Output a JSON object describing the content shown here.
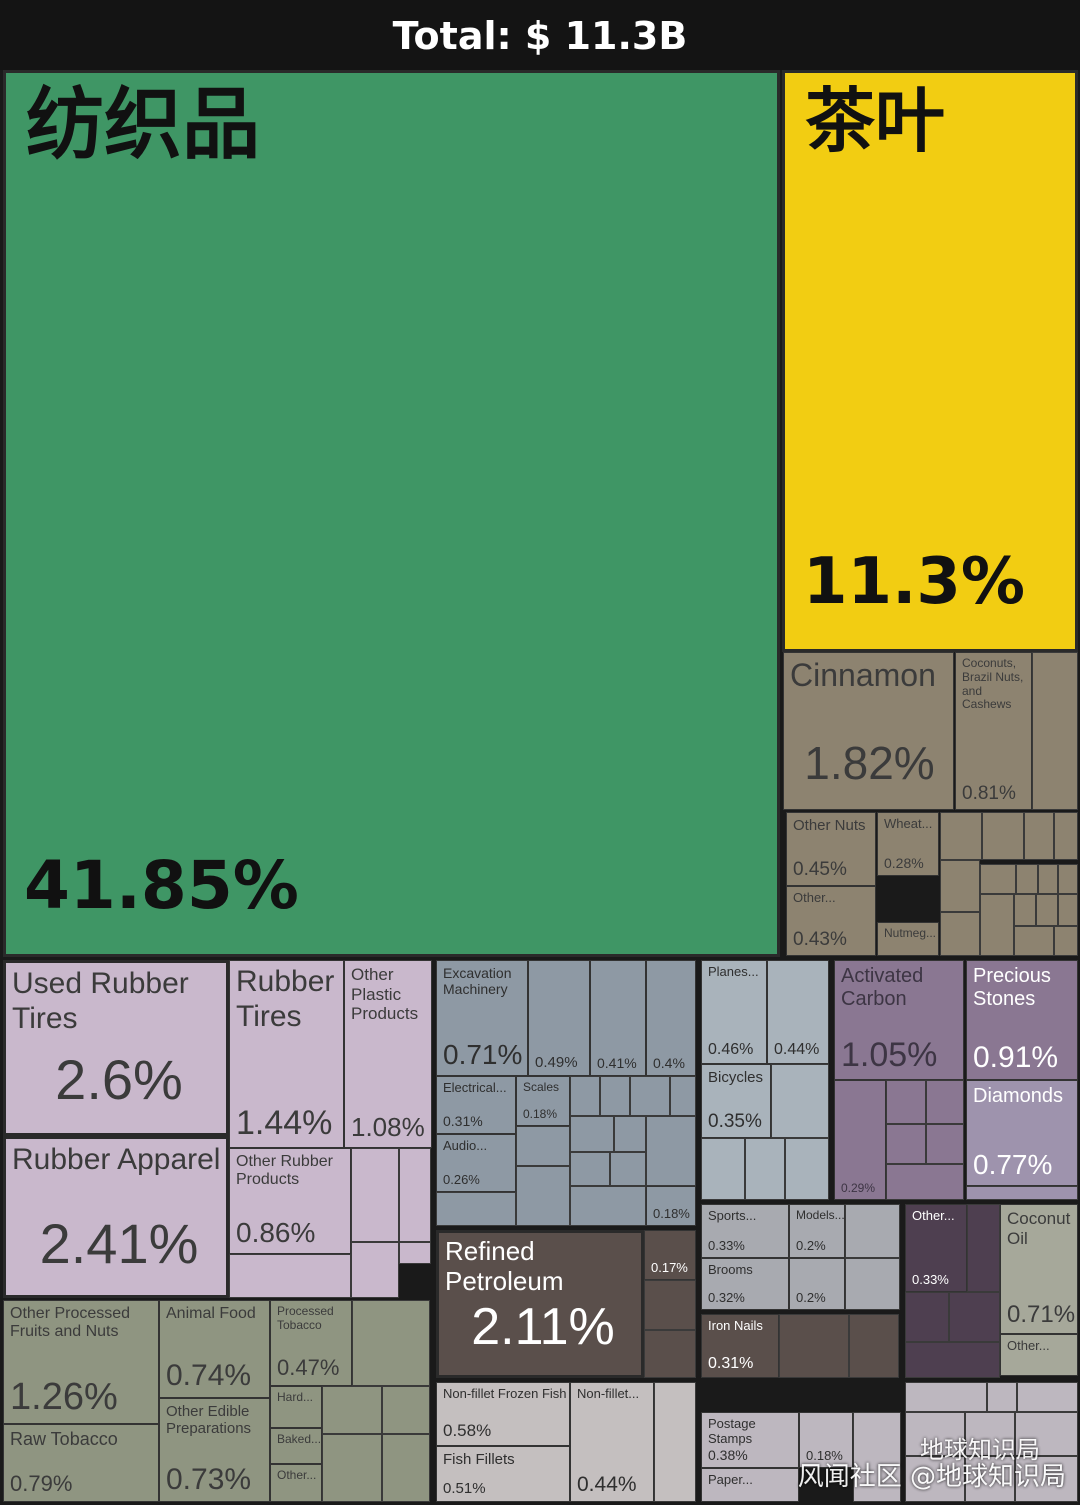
{
  "header": {
    "total_label": "Total: $ 11.3B"
  },
  "watermark": {
    "line1": "地球知识局",
    "line2": "风闻社区 @地球知识局"
  },
  "chart_data": {
    "type": "treemap",
    "title": "Total: $ 11.3B",
    "total": "$ 11.3B",
    "items": [
      {
        "name": "纺织品",
        "value": 41.85,
        "label": "41.85%"
      },
      {
        "name": "茶叶",
        "value": 11.3,
        "label": "11.3%"
      },
      {
        "name": "Cinnamon",
        "value": 1.82,
        "label": "1.82%"
      },
      {
        "name": "Coconuts, Brazil Nuts, and Cashews",
        "value": 0.81,
        "label": "0.81%"
      },
      {
        "name": "Other Nuts",
        "value": 0.45,
        "label": "0.45%"
      },
      {
        "name": "Wheat...",
        "value": 0.28,
        "label": "0.28%"
      },
      {
        "name": "Other...",
        "value": 0.43,
        "label": "0.43%"
      },
      {
        "name": "Nutmeg...",
        "value": null,
        "label": ""
      },
      {
        "name": "Used Rubber Tires",
        "value": 2.6,
        "label": "2.6%"
      },
      {
        "name": "Rubber Tires",
        "value": 1.44,
        "label": "1.44%"
      },
      {
        "name": "Other Plastic Products",
        "value": 1.08,
        "label": "1.08%"
      },
      {
        "name": "Rubber Apparel",
        "value": 2.41,
        "label": "2.41%"
      },
      {
        "name": "Other Rubber Products",
        "value": 0.86,
        "label": "0.86%"
      },
      {
        "name": "Excavation Machinery",
        "value": 0.71,
        "label": "0.71%"
      },
      {
        "name": "",
        "value": 0.49,
        "label": "0.49%"
      },
      {
        "name": "",
        "value": 0.41,
        "label": "0.41%"
      },
      {
        "name": "",
        "value": 0.4,
        "label": "0.4%"
      },
      {
        "name": "Electrical...",
        "value": 0.31,
        "label": "0.31%"
      },
      {
        "name": "Scales",
        "value": 0.18,
        "label": "0.18%"
      },
      {
        "name": "Audio...",
        "value": 0.26,
        "label": "0.26%"
      },
      {
        "name": "",
        "value": 0.18,
        "label": "0.18%"
      },
      {
        "name": "Planes...",
        "value": 0.46,
        "label": "0.46%"
      },
      {
        "name": "",
        "value": 0.44,
        "label": "0.44%"
      },
      {
        "name": "Bicycles",
        "value": 0.35,
        "label": "0.35%"
      },
      {
        "name": "Activated Carbon",
        "value": 1.05,
        "label": "1.05%"
      },
      {
        "name": "",
        "value": 0.29,
        "label": "0.29%"
      },
      {
        "name": "Precious Stones",
        "value": 0.91,
        "label": "0.91%"
      },
      {
        "name": "Diamonds",
        "value": 0.77,
        "label": "0.77%"
      },
      {
        "name": "Refined Petroleum",
        "value": 2.11,
        "label": "2.11%"
      },
      {
        "name": "",
        "value": 0.17,
        "label": "0.17%"
      },
      {
        "name": "Sports...",
        "value": 0.33,
        "label": "0.33%"
      },
      {
        "name": "Models...",
        "value": 0.2,
        "label": "0.2%"
      },
      {
        "name": "Brooms",
        "value": 0.32,
        "label": "0.32%"
      },
      {
        "name": "",
        "value": 0.2,
        "label": "0.2%"
      },
      {
        "name": "Other...",
        "value": 0.33,
        "label": "0.33%"
      },
      {
        "name": "Coconut Oil",
        "value": 0.71,
        "label": "0.71%"
      },
      {
        "name": "Other...",
        "value": null,
        "label": ""
      },
      {
        "name": "Iron Nails",
        "value": 0.31,
        "label": "0.31%"
      },
      {
        "name": "Other Processed Fruits and Nuts",
        "value": 1.26,
        "label": "1.26%"
      },
      {
        "name": "Animal Food",
        "value": 0.74,
        "label": "0.74%"
      },
      {
        "name": "Processed Tobacco",
        "value": 0.47,
        "label": "0.47%"
      },
      {
        "name": "Hard...",
        "value": null,
        "label": ""
      },
      {
        "name": "Raw Tobacco",
        "value": 0.79,
        "label": "0.79%"
      },
      {
        "name": "Other Edible Preparations",
        "value": 0.73,
        "label": "0.73%"
      },
      {
        "name": "Baked...",
        "value": null,
        "label": ""
      },
      {
        "name": "Other...",
        "value": null,
        "label": ""
      },
      {
        "name": "Non-fillet Frozen Fish",
        "value": 0.58,
        "label": "0.58%"
      },
      {
        "name": "Non-fillet...",
        "value": 0.44,
        "label": "0.44%"
      },
      {
        "name": "Fish Fillets",
        "value": 0.51,
        "label": "0.51%"
      },
      {
        "name": "Postage Stamps",
        "value": 0.38,
        "label": "0.38%"
      },
      {
        "name": "",
        "value": 0.18,
        "label": "0.18%"
      },
      {
        "name": "Paper...",
        "value": null,
        "label": ""
      }
    ],
    "colors": {
      "textiles": "#3f9665",
      "tea": "#f2cd12",
      "foods": "#8d8370",
      "rubber_plastic": "#c9b8cc",
      "machinery": "#8e99a4",
      "metals_misc": "#a9b3bb",
      "chemicals": "#8a7792",
      "precious": "#9e93ad",
      "petroleum": "#5a4f4b",
      "instruments": "#a8aab0",
      "oils": "#a6a89a",
      "animal_veg": "#8f9581",
      "fish": "#c4bfbf",
      "paper": "#bdb7bf",
      "dark_purple": "#4e3f50"
    }
  }
}
